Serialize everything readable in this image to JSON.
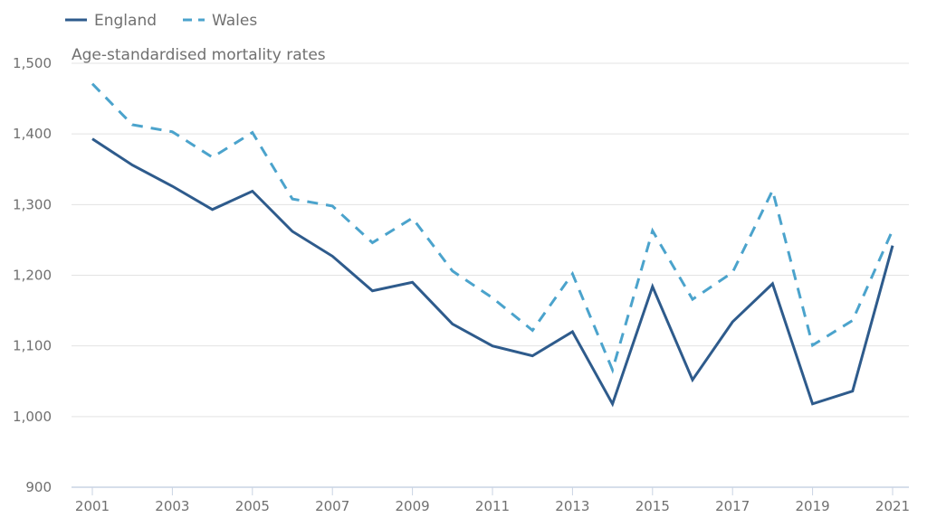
{
  "chart_data": {
    "type": "line",
    "title": "",
    "subtitle": "Age-standardised mortality rates",
    "xlabel": "",
    "ylabel": "Age-standardised mortality rates",
    "legend_position": "top-left",
    "grid": true,
    "ylim": [
      900,
      1500
    ],
    "yticks": [
      900,
      1000,
      1100,
      1200,
      1300,
      1400,
      1500
    ],
    "ytick_labels": [
      "900",
      "1,000",
      "1,100",
      "1,200",
      "1,300",
      "1,400",
      "1,500"
    ],
    "xticks": [
      2001,
      2003,
      2005,
      2007,
      2009,
      2011,
      2013,
      2015,
      2017,
      2019,
      2021
    ],
    "xtick_labels": [
      "2001",
      "2003",
      "2005",
      "2007",
      "2009",
      "2011",
      "2013",
      "2015",
      "2017",
      "2019",
      "2021"
    ],
    "x": [
      2001,
      2002,
      2003,
      2004,
      2005,
      2006,
      2007,
      2008,
      2009,
      2010,
      2011,
      2012,
      2013,
      2014,
      2015,
      2016,
      2017,
      2018,
      2019,
      2020,
      2021
    ],
    "series": [
      {
        "name": "England",
        "style": "solid",
        "color": "#2e5b8c",
        "values": [
          1393,
          1356,
          1326,
          1293,
          1319,
          1262,
          1227,
          1178,
          1190,
          1131,
          1100,
          1086,
          1120,
          1018,
          1184,
          1052,
          1134,
          1188,
          1018,
          1036,
          1242
        ]
      },
      {
        "name": "Wales",
        "style": "dashed",
        "color": "#4ba3cc",
        "values": [
          1471,
          1413,
          1403,
          1367,
          1402,
          1308,
          1298,
          1246,
          1281,
          1206,
          1168,
          1122,
          1202,
          1066,
          1263,
          1166,
          1204,
          1320,
          1101,
          1136,
          1264
        ]
      }
    ]
  }
}
